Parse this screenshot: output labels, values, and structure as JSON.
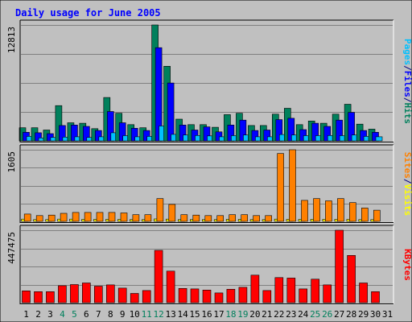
{
  "chart_data": {
    "type": "bar",
    "title": "Daily usage for June 2005",
    "days": [
      "1",
      "2",
      "3",
      "4",
      "5",
      "6",
      "7",
      "8",
      "9",
      "10",
      "11",
      "12",
      "13",
      "14",
      "15",
      "16",
      "17",
      "18",
      "19",
      "20",
      "21",
      "22",
      "23",
      "24",
      "25",
      "26",
      "27",
      "28",
      "29",
      "30",
      "31"
    ],
    "weekend_days": [
      "4",
      "5",
      "11",
      "12",
      "18",
      "19",
      "25",
      "26"
    ],
    "panels": [
      {
        "id": "hits",
        "max_label": "12813",
        "max": 12813,
        "legend": [
          {
            "text": "Pages",
            "color": "#00c0ff"
          },
          {
            "text": "/",
            "color": "#000080"
          },
          {
            "text": "Files",
            "color": "#0000ff"
          },
          {
            "text": "/",
            "color": "#000080"
          },
          {
            "text": "Hits",
            "color": "#00805c"
          }
        ],
        "series": [
          {
            "name": "Hits",
            "color": "#00805c",
            "values": [
              1450,
              1450,
              1200,
              3900,
              2000,
              1950,
              1350,
              4800,
              3050,
              1800,
              1450,
              12813,
              8250,
              2400,
              1800,
              1800,
              1500,
              2900,
              3050,
              1700,
              1700,
              2950,
              3600,
              1800,
              2200,
              1950,
              2950,
              4050,
              1850,
              1300,
              0
            ]
          },
          {
            "name": "Files",
            "color": "#0000ff",
            "values": [
              950,
              900,
              800,
              1700,
              1750,
              1600,
              1150,
              3250,
              2000,
              1400,
              1150,
              10300,
              6400,
              1750,
              1200,
              1550,
              1000,
              1750,
              2300,
              1150,
              1200,
              2350,
              2500,
              1250,
              1950,
              1600,
              2300,
              3150,
              1150,
              950,
              0
            ]
          },
          {
            "name": "Pages",
            "color": "#00c0ff",
            "values": [
              500,
              330,
              380,
              420,
              450,
              380,
              450,
              900,
              580,
              450,
              500,
              1650,
              720,
              650,
              600,
              550,
              450,
              580,
              650,
              450,
              450,
              700,
              650,
              580,
              580,
              600,
              580,
              650,
              500,
              450,
              0
            ]
          }
        ]
      },
      {
        "id": "visits",
        "max_label": "1605",
        "max": 1605,
        "legend": [
          {
            "text": "Sites",
            "color": "#ff8000"
          },
          {
            "text": "/",
            "color": "#000080"
          },
          {
            "text": "Visits",
            "color": "#ffff00"
          }
        ],
        "series": [
          {
            "name": "Visits",
            "color": "#ffff00",
            "values": [
              50,
              40,
              40,
              50,
              50,
              45,
              45,
              45,
              45,
              40,
              40,
              55,
              50,
              40,
              40,
              40,
              40,
              45,
              45,
              40,
              40,
              50,
              45,
              45,
              45,
              45,
              45,
              45,
              40,
              40,
              0
            ]
          },
          {
            "name": "Sites",
            "color": "#ff8000",
            "values": [
              165,
              130,
              140,
              180,
              200,
              200,
              200,
              200,
              190,
              150,
              150,
              510,
              380,
              150,
              140,
              130,
              130,
              150,
              150,
              130,
              130,
              1520,
              1605,
              470,
              510,
              460,
              510,
              420,
              300,
              250,
              0
            ]
          }
        ]
      },
      {
        "id": "kbytes",
        "max_label": "447475",
        "max": 447475,
        "legend": [
          {
            "text": "KBytes",
            "color": "#ff0000"
          }
        ],
        "series": [
          {
            "name": "KBytes",
            "color": "#ff0000",
            "values": [
              73000,
              68000,
              68000,
              105000,
              112000,
              122000,
              102000,
              110000,
              90000,
              57000,
              75000,
              323000,
              195000,
              88000,
              85000,
              78000,
              60000,
              83000,
              95000,
              170000,
              75000,
              155000,
              152000,
              85000,
              145000,
              110000,
              447475,
              292000,
              122000,
              68000,
              0
            ]
          }
        ]
      }
    ]
  }
}
